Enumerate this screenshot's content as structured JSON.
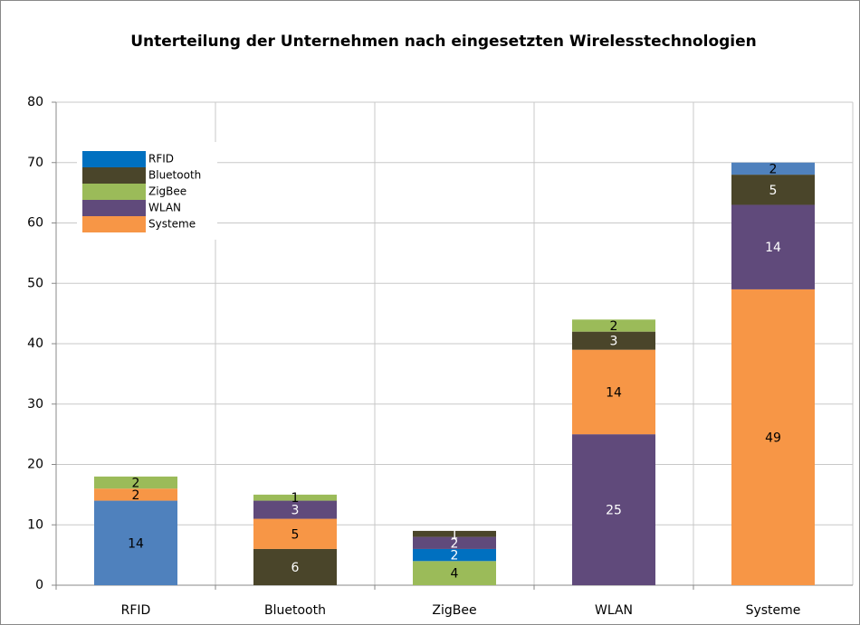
{
  "chart_data": {
    "type": "stacked-bar",
    "title": "Unterteilung der Unternehmen nach eingesetzten Wirelesstechnologien",
    "categories": [
      "RFID",
      "Bluetooth",
      "ZigBee",
      "WLAN",
      "Systeme"
    ],
    "series": [
      {
        "name": "RFID",
        "color": "#0070c0"
      },
      {
        "name": "Bluetooth",
        "color": "#4a452a"
      },
      {
        "name": "ZigBee",
        "color": "#9bbb59"
      },
      {
        "name": "WLAN",
        "color": "#604a7b"
      },
      {
        "name": "Systeme",
        "color": "#f79646"
      }
    ],
    "stacks": [
      [
        {
          "series": "RFID",
          "value": 14,
          "color": "#4f81bd"
        },
        {
          "series": "Systeme",
          "value": 2,
          "color": "#f79646"
        },
        {
          "series": "ZigBee",
          "value": 2,
          "color": "#9bbb59"
        }
      ],
      [
        {
          "series": "Bluetooth",
          "value": 6,
          "color": "#4a452a"
        },
        {
          "series": "Systeme",
          "value": 5,
          "color": "#f79646"
        },
        {
          "series": "WLAN",
          "value": 3,
          "color": "#604a7b"
        },
        {
          "series": "ZigBee",
          "value": 1,
          "color": "#9bbb59"
        }
      ],
      [
        {
          "series": "ZigBee",
          "value": 4,
          "color": "#9bbb59"
        },
        {
          "series": "RFID",
          "value": 2,
          "color": "#0070c0"
        },
        {
          "series": "WLAN",
          "value": 2,
          "color": "#604a7b"
        },
        {
          "series": "Bluetooth",
          "value": 1,
          "color": "#4a452a"
        }
      ],
      [
        {
          "series": "WLAN",
          "value": 25,
          "color": "#604a7b"
        },
        {
          "series": "Systeme",
          "value": 14,
          "color": "#f79646"
        },
        {
          "series": "Bluetooth",
          "value": 3,
          "color": "#4a452a"
        },
        {
          "series": "ZigBee",
          "value": 2,
          "color": "#9bbb59"
        }
      ],
      [
        {
          "series": "Systeme",
          "value": 49,
          "color": "#f79646"
        },
        {
          "series": "WLAN",
          "value": 14,
          "color": "#604a7b"
        },
        {
          "series": "Bluetooth",
          "value": 5,
          "color": "#4a452a"
        },
        {
          "series": "RFID",
          "value": 2,
          "color": "#4f81bd"
        }
      ]
    ],
    "ylim": [
      0,
      80
    ],
    "yticks": [
      0,
      10,
      20,
      30,
      40,
      50,
      60,
      70,
      80
    ],
    "grid": true,
    "legend": "upper-left"
  }
}
